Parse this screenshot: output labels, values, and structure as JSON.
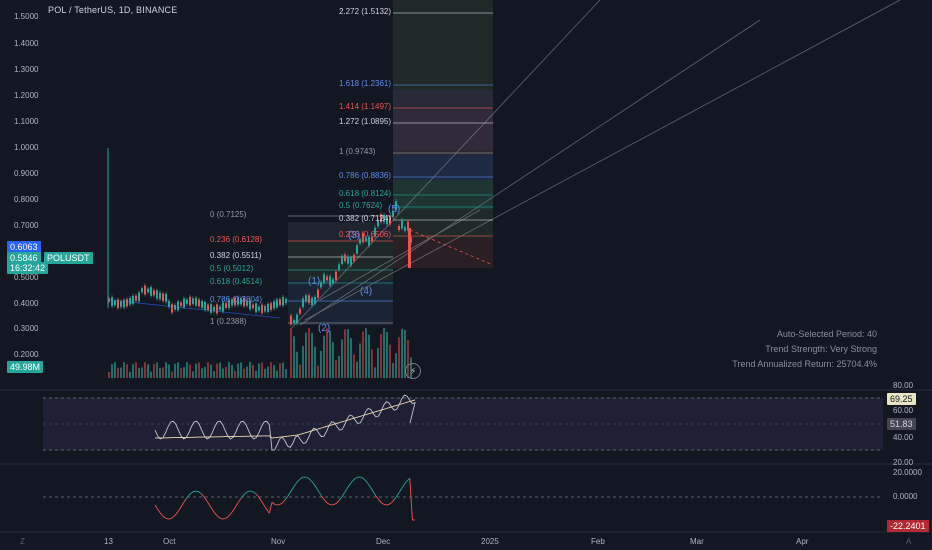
{
  "header": {
    "title": "POL / TetherUS, 1D, BINANCE"
  },
  "price_axis": {
    "ticks": [
      "1.5000",
      "1.4000",
      "1.3000",
      "1.2000",
      "1.1000",
      "1.0000",
      "0.9000",
      "0.8000",
      "0.7000",
      "0.6000",
      "0.5000",
      "0.4000",
      "0.3000",
      "0.2000"
    ]
  },
  "badges": {
    "price_upper": "0.6063",
    "price_current": "0.5846",
    "countdown": "16:32:42",
    "symbol": "POLUSDT",
    "volume": "49.98M",
    "rsi_value": "69.25",
    "rsi_ma": "51.83",
    "osc_value": "-22.2401"
  },
  "fib_extension": [
    "2.272 (1.5132)",
    "1.618 (1.2361)",
    "1.414 (1.1497)",
    "1.272 (1.0895)",
    "1 (0.9743)",
    "0.786 (0.8836)",
    "0.618 (0.8124)",
    "0.5 (0.7624)",
    "0.382 (0.7124)",
    "0.236 (0.6506)"
  ],
  "fib_retracement": [
    "0 (0.7125)",
    "0.236 (0.6128)",
    "0.382 (0.5511)",
    "0.5 (0.5012)",
    "0.618 (0.4514)",
    "0.786 (0.3804)",
    "1 (0.2388)"
  ],
  "wave_labels": [
    "(1)",
    "(2)",
    "(3)",
    "(4)",
    "(5)"
  ],
  "info_panel": {
    "period": "Auto-Selected Period: 40",
    "strength": "Trend Strength: Very Strong",
    "return": "Trend Annualized Return: 25704.4%"
  },
  "rsi_axis": {
    "ticks": [
      "80.00",
      "60.00",
      "40.00",
      "20.00"
    ]
  },
  "osc_axis": {
    "ticks": [
      "20.0000",
      "0.0000"
    ]
  },
  "time_axis": [
    "13",
    "Oct",
    "Nov",
    "Dec",
    "2025",
    "Feb",
    "Mar",
    "Apr"
  ],
  "corner": {
    "left": "Z",
    "right": "A"
  },
  "colors": {
    "up": "#26a69a",
    "down": "#ef5350",
    "accent": "#2962ff",
    "background": "#131722"
  }
}
